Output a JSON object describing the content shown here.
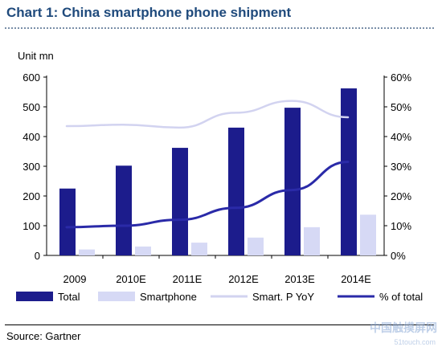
{
  "title": "Chart 1: China smartphone phone shipment",
  "source": "Source: Gartner",
  "watermark": "中国触摸屏网",
  "watermark_url": "51touch.com",
  "chart_data": {
    "type": "bar",
    "title": "Chart 1: China smartphone phone shipment",
    "unit_label": "Unit mn",
    "categories": [
      "2009",
      "2010E",
      "2011E",
      "2012E",
      "2013E",
      "2014E"
    ],
    "left_axis": {
      "min": 0,
      "max": 600,
      "ticks": [
        0,
        100,
        200,
        300,
        400,
        500,
        600
      ]
    },
    "right_axis": {
      "min": 0,
      "max": 60,
      "ticks": [
        "0%",
        "10%",
        "20%",
        "30%",
        "40%",
        "50%",
        "60%"
      ]
    },
    "series": [
      {
        "name": "Total",
        "kind": "bar",
        "axis": "left",
        "color": "#1c1c8c",
        "values": [
          225,
          302,
          362,
          430,
          497,
          562
        ]
      },
      {
        "name": "Smartphone",
        "kind": "bar",
        "axis": "left",
        "color": "#d6d9f5",
        "values": [
          20,
          30,
          43,
          60,
          95,
          137
        ]
      },
      {
        "name": "Smart. P YoY",
        "kind": "line",
        "axis": "right",
        "color": "#d2d3f0",
        "values": [
          43.5,
          44,
          43,
          48,
          52,
          46.5
        ]
      },
      {
        "name": "% of total",
        "kind": "line",
        "axis": "right",
        "color": "#2a2aa8",
        "values": [
          9.5,
          10,
          12,
          16,
          22,
          31.5
        ]
      }
    ],
    "legend_position": "bottom",
    "grid": false
  }
}
